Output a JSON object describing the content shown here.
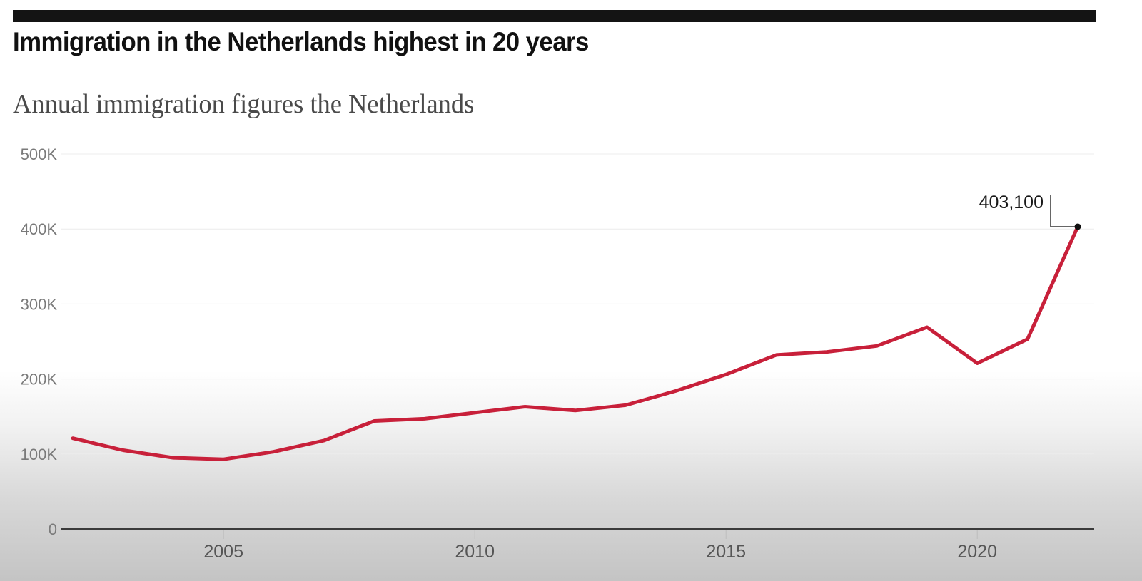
{
  "header": {
    "title": "Immigration in the Netherlands highest in 20 years",
    "subtitle": "Annual immigration figures the Netherlands"
  },
  "colors": {
    "line": "#c8203a",
    "axis": "#3a3a3a",
    "grid": "#ececec",
    "marker": "#111111"
  },
  "chart_data": {
    "type": "line",
    "title": "Immigration in the Netherlands highest in 20 years",
    "subtitle": "Annual immigration figures the Netherlands",
    "xlabel": "",
    "ylabel": "",
    "x": [
      2002,
      2003,
      2004,
      2005,
      2006,
      2007,
      2008,
      2009,
      2010,
      2011,
      2012,
      2013,
      2014,
      2015,
      2016,
      2017,
      2018,
      2019,
      2020,
      2021,
      2022
    ],
    "series": [
      {
        "name": "Immigration",
        "values": [
          121000,
          105000,
          95000,
          93000,
          103000,
          118000,
          144000,
          147000,
          155000,
          163000,
          158000,
          165000,
          184000,
          206000,
          232000,
          236000,
          244000,
          269000,
          221000,
          253000,
          403100
        ]
      }
    ],
    "xlim": [
      2002,
      2022
    ],
    "ylim": [
      0,
      500000
    ],
    "yticks": [
      {
        "value": 0,
        "label": "0"
      },
      {
        "value": 100000,
        "label": "100K"
      },
      {
        "value": 200000,
        "label": "200K"
      },
      {
        "value": 300000,
        "label": "300K"
      },
      {
        "value": 400000,
        "label": "400K"
      },
      {
        "value": 500000,
        "label": "500K"
      }
    ],
    "xticks": [
      {
        "value": 2005,
        "label": "2005"
      },
      {
        "value": 2010,
        "label": "2010"
      },
      {
        "value": 2015,
        "label": "2015"
      },
      {
        "value": 2020,
        "label": "2020"
      }
    ],
    "grid": true,
    "legend": "none",
    "annotations": [
      {
        "x": 2022,
        "y": 403100,
        "label": "403,100"
      }
    ]
  }
}
